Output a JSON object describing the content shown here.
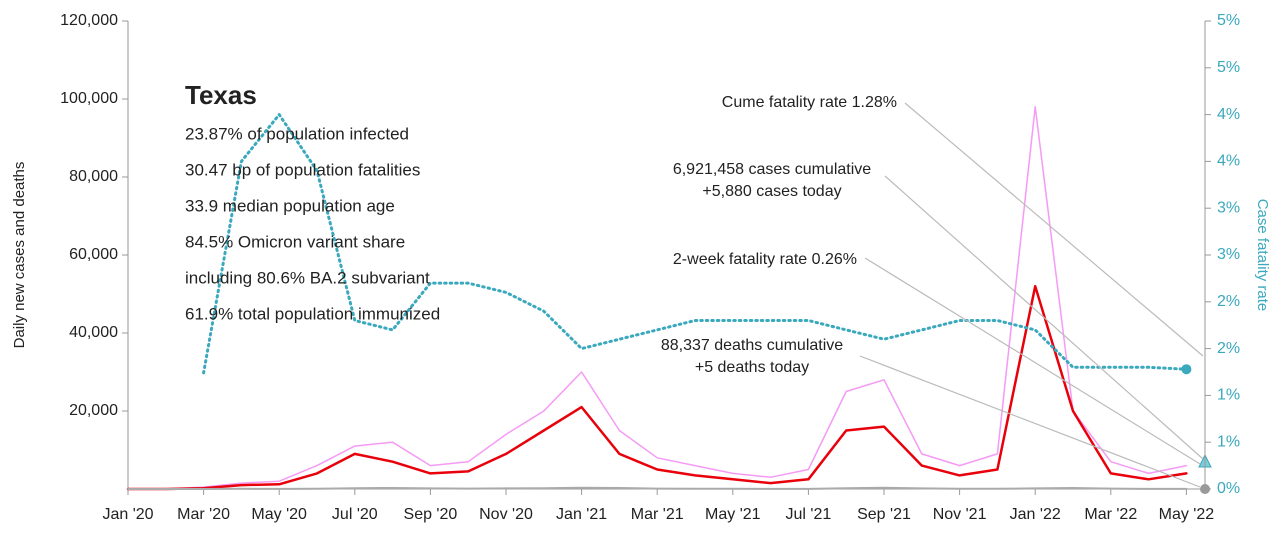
{
  "chart_data": {
    "type": "line",
    "ylabel": "Daily new cases and deaths",
    "y2label": "Case fatality rate",
    "x": [
      "2020-01",
      "2020-02",
      "2020-03",
      "2020-04",
      "2020-05",
      "2020-06",
      "2020-07",
      "2020-08",
      "2020-09",
      "2020-10",
      "2020-11",
      "2020-12",
      "2021-01",
      "2021-02",
      "2021-03",
      "2021-04",
      "2021-05",
      "2021-06",
      "2021-07",
      "2021-08",
      "2021-09",
      "2021-10",
      "2021-11",
      "2021-12",
      "2022-01",
      "2022-02",
      "2022-03",
      "2022-04",
      "2022-05"
    ],
    "series": [
      {
        "color": "#f59af5",
        "width": 1.5,
        "values": [
          0,
          0,
          500,
          1500,
          2000,
          6000,
          11000,
          12000,
          6000,
          7000,
          14000,
          20000,
          30000,
          15000,
          8000,
          6000,
          4000,
          3000,
          5000,
          25000,
          28000,
          9000,
          6000,
          9000,
          98000,
          20000,
          7000,
          4000,
          6000
        ]
      },
      {
        "color": "#e8000b",
        "width": 2.5,
        "values": [
          0,
          0,
          200,
          1000,
          1200,
          4000,
          9000,
          7000,
          4000,
          4500,
          9000,
          15000,
          21000,
          9000,
          5000,
          3500,
          2500,
          1500,
          2500,
          15000,
          16000,
          6000,
          3500,
          5000,
          52000,
          20000,
          4000,
          2500,
          4000
        ]
      },
      {
        "color": "#aaaaaa",
        "width": 2,
        "values": [
          0,
          0,
          10,
          40,
          30,
          60,
          200,
          250,
          150,
          90,
          150,
          200,
          300,
          250,
          100,
          50,
          40,
          20,
          30,
          200,
          300,
          150,
          60,
          50,
          150,
          250,
          100,
          30,
          20
        ]
      },
      {
        "color": "#3aa8bd",
        "width": 3,
        "dotted": true,
        "axis": "y2",
        "values": [
          null,
          null,
          1.24,
          3.5,
          4.0,
          3.4,
          1.8,
          1.7,
          2.2,
          2.2,
          2.1,
          1.9,
          1.5,
          1.6,
          1.7,
          1.8,
          1.8,
          1.8,
          1.8,
          1.7,
          1.6,
          1.7,
          1.8,
          1.8,
          1.7,
          1.3,
          1.3,
          1.3,
          1.28
        ]
      }
    ],
    "xticks": [
      {
        "value": "2020-01",
        "label": "Jan '20"
      },
      {
        "value": "2020-03",
        "label": "Mar '20"
      },
      {
        "value": "2020-05",
        "label": "May '20"
      },
      {
        "value": "2020-07",
        "label": "Jul '20"
      },
      {
        "value": "2020-09",
        "label": "Sep '20"
      },
      {
        "value": "2020-11",
        "label": "Nov '20"
      },
      {
        "value": "2021-01",
        "label": "Jan '21"
      },
      {
        "value": "2021-03",
        "label": "Mar '21"
      },
      {
        "value": "2021-05",
        "label": "May '21"
      },
      {
        "value": "2021-07",
        "label": "Jul '21"
      },
      {
        "value": "2021-09",
        "label": "Sep '21"
      },
      {
        "value": "2021-11",
        "label": "Nov '21"
      },
      {
        "value": "2022-01",
        "label": "Jan '22"
      },
      {
        "value": "2022-03",
        "label": "Mar '22"
      },
      {
        "value": "2022-05",
        "label": "May '22"
      }
    ],
    "ylim": [
      0,
      120000
    ],
    "yticks": [
      {
        "value": 20000,
        "label": "20,000"
      },
      {
        "value": 40000,
        "label": "40,000"
      },
      {
        "value": 60000,
        "label": "60,000"
      },
      {
        "value": 80000,
        "label": "80,000"
      },
      {
        "value": 100000,
        "label": "100,000"
      },
      {
        "value": 120000,
        "label": "120,000"
      }
    ],
    "y2lim": [
      0,
      5
    ],
    "y2ticks": [
      {
        "value": 0,
        "label": "0%"
      },
      {
        "value": 0.5,
        "label": "1%"
      },
      {
        "value": 1,
        "label": "1%"
      },
      {
        "value": 1.5,
        "label": "2%"
      },
      {
        "value": 2,
        "label": "2%"
      },
      {
        "value": 2.5,
        "label": "3%"
      },
      {
        "value": 3,
        "label": "3%"
      },
      {
        "value": 3.5,
        "label": "4%"
      },
      {
        "value": 4,
        "label": "4%"
      },
      {
        "value": 4.5,
        "label": "5%"
      },
      {
        "value": 5,
        "label": "5%"
      }
    ],
    "infobox": {
      "title": "Texas",
      "lines": [
        "23.87% of population infected",
        "30.47 bp of population fatalities",
        "33.9 median population age",
        "84.5% Omicron variant share",
        "including 80.6% BA.2 subvariant",
        "61.9% total population immunized"
      ]
    },
    "annotations": [
      [
        "Cume fatality rate 1.28%"
      ],
      [
        "6,921,458 cases cumulative",
        "+5,880 cases today"
      ],
      [
        "2-week fatality rate 0.26%"
      ],
      [
        "88,337 deaths cumulative",
        "+5 deaths today"
      ]
    ]
  }
}
